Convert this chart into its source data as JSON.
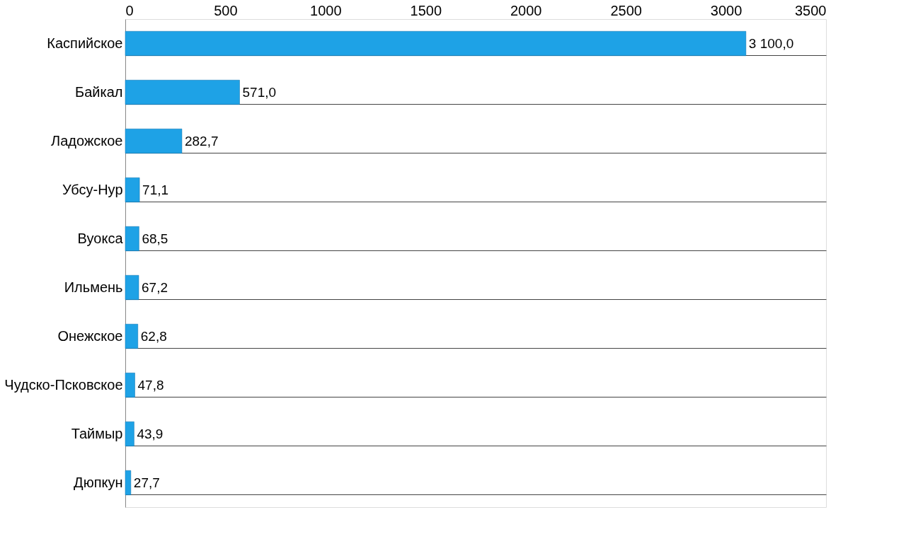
{
  "chart_data": {
    "type": "bar",
    "orientation": "horizontal",
    "categories": [
      "Каспийское",
      "Байкал",
      "Ладожское",
      "Убсу-Нур",
      "Вуокса",
      "Ильмень",
      "Онежское",
      "Чудско-Псковское",
      "Таймыр",
      "Дюпкун"
    ],
    "values": [
      3100.0,
      571.0,
      282.7,
      71.1,
      68.5,
      67.2,
      62.8,
      47.8,
      43.9,
      27.7
    ],
    "value_labels": [
      "3 100,0",
      "571,0",
      "282,7",
      "71,1",
      "68,5",
      "67,2",
      "62,8",
      "47,8",
      "43,9",
      "27,7"
    ],
    "color": "#1ea2e6",
    "xlim": [
      0,
      3500
    ],
    "xticks": [
      0,
      500,
      1000,
      1500,
      2000,
      2500,
      3000,
      3500
    ],
    "grid": "y"
  }
}
